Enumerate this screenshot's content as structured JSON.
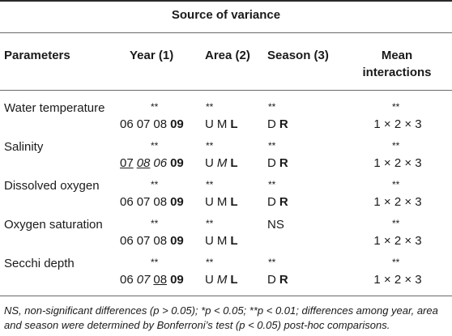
{
  "title": "Source of variance",
  "headers": {
    "parameters": "Parameters",
    "year": "Year (1)",
    "area": "Area (2)",
    "season": "Season (3)",
    "mean_line1": "Mean",
    "mean_line2": "interactions"
  },
  "rows": [
    {
      "name": "Water temperature",
      "year_sig": "**",
      "area_sig": "**",
      "season_sig": "**",
      "mean_sig": "**",
      "year": [
        {
          "t": "06"
        },
        {
          "t": "07"
        },
        {
          "t": "08"
        },
        {
          "t": "09",
          "b": true
        }
      ],
      "area": [
        {
          "t": "U"
        },
        {
          "t": "M"
        },
        {
          "t": "L",
          "b": true
        }
      ],
      "season": [
        {
          "t": "D"
        },
        {
          "t": "R",
          "b": true
        }
      ],
      "mean": "1 × 2 × 3"
    },
    {
      "name": "Salinity",
      "year_sig": "**",
      "area_sig": "**",
      "season_sig": "**",
      "mean_sig": "**",
      "year": [
        {
          "t": "07",
          "u": true
        },
        {
          "t": "08",
          "i": true,
          "u": true
        },
        {
          "t": "06",
          "i": true
        },
        {
          "t": "09",
          "b": true
        }
      ],
      "area": [
        {
          "t": "U"
        },
        {
          "t": "M",
          "i": true
        },
        {
          "t": "L",
          "b": true
        }
      ],
      "season": [
        {
          "t": "D"
        },
        {
          "t": "R",
          "b": true
        }
      ],
      "mean": "1 × 2 × 3"
    },
    {
      "name": "Dissolved oxygen",
      "year_sig": "**",
      "area_sig": "**",
      "season_sig": "**",
      "mean_sig": "**",
      "year": [
        {
          "t": "06"
        },
        {
          "t": "07"
        },
        {
          "t": "08"
        },
        {
          "t": "09",
          "b": true
        }
      ],
      "area": [
        {
          "t": "U"
        },
        {
          "t": "M"
        },
        {
          "t": "L",
          "b": true
        }
      ],
      "season": [
        {
          "t": "D"
        },
        {
          "t": "R",
          "b": true
        }
      ],
      "mean": "1 × 2 × 3"
    },
    {
      "name": "Oxygen saturation",
      "year_sig": "**",
      "area_sig": "**",
      "season_sig": "NS",
      "mean_sig": "**",
      "year": [
        {
          "t": "06"
        },
        {
          "t": "07"
        },
        {
          "t": "08"
        },
        {
          "t": "09",
          "b": true
        }
      ],
      "area": [
        {
          "t": "U"
        },
        {
          "t": "M"
        },
        {
          "t": "L",
          "b": true
        }
      ],
      "season": [],
      "mean": "1 × 2 × 3"
    },
    {
      "name": "Secchi depth",
      "year_sig": "**",
      "area_sig": "**",
      "season_sig": "**",
      "mean_sig": "**",
      "year": [
        {
          "t": "06"
        },
        {
          "t": "07",
          "i": true
        },
        {
          "t": "08",
          "u": true
        },
        {
          "t": "09",
          "b": true
        }
      ],
      "area": [
        {
          "t": "U"
        },
        {
          "t": "M",
          "i": true
        },
        {
          "t": "L",
          "b": true
        }
      ],
      "season": [
        {
          "t": "D"
        },
        {
          "t": "R",
          "b": true
        }
      ],
      "mean": "1 × 2 × 3"
    }
  ],
  "footnote": "NS, non-significant differences (p > 0.05); *p < 0.05; **p < 0.01; differences among year, area and season were determined by Bonferroni’s test (p < 0.05) post-hoc comparisons."
}
